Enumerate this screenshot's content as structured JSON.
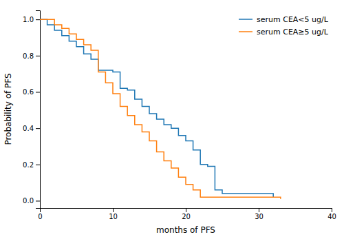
{
  "chart_data": {
    "type": "step",
    "xlabel": "months of PFS",
    "ylabel": "Probability of PFS",
    "xlim": [
      0,
      40
    ],
    "ylim": [
      -0.04,
      1.05
    ],
    "xticks": [
      0,
      10,
      20,
      30,
      40
    ],
    "yticks": [
      {
        "value": 0.0,
        "label": "0.0"
      },
      0.2,
      0.4,
      0.6,
      0.8,
      {
        "value": 1.0,
        "label": "1.0"
      }
    ],
    "legend": "upper right",
    "series": [
      {
        "name": "serum CEA<5 ug/L",
        "x": [
          0,
          1,
          2,
          3,
          4,
          5,
          6,
          7,
          8,
          9,
          10,
          11,
          12,
          13,
          14,
          15,
          16,
          17,
          18,
          19,
          20,
          21,
          22,
          23,
          24,
          25,
          32
        ],
        "values": [
          1.0,
          0.97,
          0.94,
          0.91,
          0.88,
          0.85,
          0.81,
          0.78,
          0.72,
          0.72,
          0.71,
          0.62,
          0.61,
          0.56,
          0.52,
          0.48,
          0.45,
          0.42,
          0.4,
          0.36,
          0.33,
          0.28,
          0.2,
          0.19,
          0.06,
          0.04,
          0.02
        ]
      },
      {
        "name": "serum CEA≥5 ug/L",
        "x": [
          0,
          1,
          2,
          3,
          4,
          5,
          6,
          7,
          8,
          9,
          10,
          11,
          12,
          13,
          14,
          15,
          16,
          17,
          18,
          19,
          20,
          21,
          22,
          33
        ],
        "values": [
          1.0,
          1.0,
          0.97,
          0.95,
          0.92,
          0.89,
          0.86,
          0.83,
          0.71,
          0.65,
          0.59,
          0.52,
          0.47,
          0.42,
          0.38,
          0.33,
          0.27,
          0.22,
          0.18,
          0.13,
          0.09,
          0.06,
          0.02,
          0.01
        ]
      }
    ]
  }
}
